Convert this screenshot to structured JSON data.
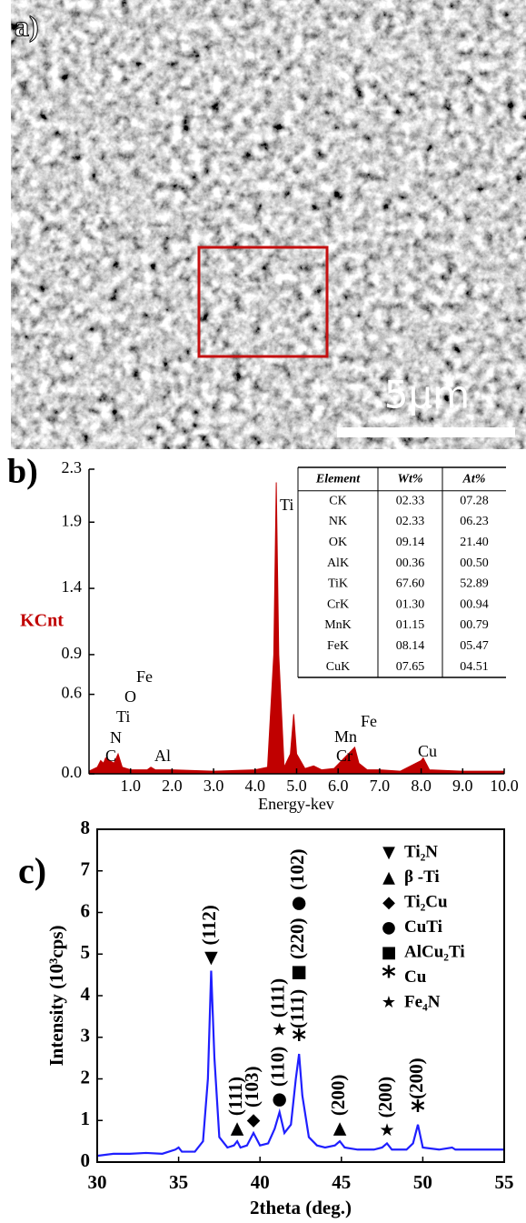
{
  "panel_a": {
    "label": "a)",
    "scale_bar": "5μm"
  },
  "chart_data": [
    {
      "type": "area",
      "panel_label": "b)",
      "color": "#c00000",
      "y_label": "KCnt",
      "x_label": "Energy-kev",
      "x": [
        0,
        0.2,
        0.28,
        0.35,
        0.4,
        0.5,
        0.6,
        0.7,
        0.8,
        1.0,
        1.4,
        1.49,
        1.6,
        2.0,
        3.0,
        4.0,
        4.3,
        4.45,
        4.51,
        4.57,
        4.7,
        4.85,
        4.93,
        5.0,
        5.2,
        5.41,
        5.6,
        5.9,
        6.4,
        6.5,
        6.7,
        7.0,
        7.5,
        8.0,
        8.05,
        8.2,
        9.0,
        10.0
      ],
      "values": [
        0.02,
        0.05,
        0.1,
        0.08,
        0.12,
        0.1,
        0.08,
        0.15,
        0.05,
        0.03,
        0.03,
        0.05,
        0.03,
        0.03,
        0.02,
        0.03,
        0.05,
        0.9,
        2.2,
        0.9,
        0.05,
        0.15,
        0.45,
        0.15,
        0.04,
        0.06,
        0.03,
        0.04,
        0.2,
        0.08,
        0.03,
        0.03,
        0.02,
        0.1,
        0.12,
        0.03,
        0.02,
        0.02
      ],
      "xlim": [
        0,
        10
      ],
      "xticks": [
        {
          "value": 1,
          "label": "1.0"
        },
        {
          "value": 2,
          "label": "2.0"
        },
        {
          "value": 3,
          "label": "3.0"
        },
        {
          "value": 4,
          "label": "4.0"
        },
        {
          "value": 5,
          "label": "5.0"
        },
        {
          "value": 6,
          "label": "6.0"
        },
        {
          "value": 7,
          "label": "7.0"
        },
        {
          "value": 8,
          "label": "8.0"
        },
        {
          "value": 9,
          "label": "9.0"
        },
        {
          "value": 10,
          "label": "10.0"
        }
      ],
      "ylim": [
        0,
        2.3
      ],
      "yticks": [
        {
          "value": 0,
          "label": "0.0"
        },
        0.6,
        0.9,
        1.4,
        1.9,
        2.3
      ],
      "annotations": [
        "Ti",
        "Fe",
        "O",
        "Ti",
        "N",
        "C",
        "Al",
        "Cr",
        "Mn",
        "Fe",
        "Cu"
      ],
      "table": {
        "columns": [
          "Element",
          "Wt%",
          "At%"
        ],
        "rows": [
          [
            "CK",
            "02.33",
            "07.28"
          ],
          [
            "NK",
            "02.33",
            "06.23"
          ],
          [
            "OK",
            "09.14",
            "21.40"
          ],
          [
            "AlK",
            "00.36",
            "00.50"
          ],
          [
            "TiK",
            "67.60",
            "52.89"
          ],
          [
            "CrK",
            "01.30",
            "00.94"
          ],
          [
            "MnK",
            "01.15",
            "00.79"
          ],
          [
            "FeK",
            "08.14",
            "05.47"
          ],
          [
            "CuK",
            "07.65",
            "04.51"
          ]
        ]
      }
    },
    {
      "type": "line",
      "panel_label": "c)",
      "color": "#1f1fff",
      "y_label": "Intensity (10³cps)",
      "x_label": "2theta (deg.)",
      "x": [
        30,
        31,
        32,
        33,
        34,
        34.8,
        35,
        35.2,
        36,
        36.5,
        36.8,
        37.0,
        37.2,
        37.5,
        38,
        38.4,
        38.6,
        38.8,
        39.2,
        39.6,
        40,
        40.5,
        40.9,
        41.2,
        41.5,
        41.9,
        42.2,
        42.4,
        42.6,
        43,
        43.5,
        44,
        44.6,
        44.9,
        45.2,
        46,
        47,
        47.5,
        47.8,
        48.1,
        49,
        49.4,
        49.7,
        50,
        51,
        51.8,
        52,
        53,
        54,
        55
      ],
      "values": [
        0.15,
        0.2,
        0.2,
        0.22,
        0.2,
        0.3,
        0.35,
        0.25,
        0.25,
        0.5,
        2.0,
        4.6,
        2.5,
        0.6,
        0.35,
        0.4,
        0.5,
        0.35,
        0.4,
        0.7,
        0.4,
        0.45,
        0.8,
        1.2,
        0.7,
        0.9,
        2.0,
        2.6,
        1.6,
        0.6,
        0.4,
        0.35,
        0.4,
        0.5,
        0.35,
        0.3,
        0.3,
        0.35,
        0.45,
        0.3,
        0.3,
        0.45,
        0.9,
        0.35,
        0.3,
        0.35,
        0.3,
        0.3,
        0.3,
        0.3
      ],
      "xlim": [
        30,
        55
      ],
      "xticks": [
        30,
        35,
        40,
        45,
        50,
        55
      ],
      "ylim": [
        0,
        8
      ],
      "yticks": [
        0,
        1,
        2,
        3,
        4,
        5,
        6,
        7,
        8
      ],
      "peaks": [
        {
          "x": 37.0,
          "labels": [
            {
              "symbol": "▼",
              "text": "(112)"
            }
          ]
        },
        {
          "x": 38.6,
          "labels": [
            {
              "symbol": "▲",
              "text": "(111)"
            }
          ]
        },
        {
          "x": 39.6,
          "labels": [
            {
              "symbol": "◆",
              "text": "(103)"
            }
          ]
        },
        {
          "x": 41.2,
          "labels": [
            {
              "symbol": "●",
              "text": "(110)"
            },
            {
              "symbol": "★",
              "text": "(111)"
            }
          ]
        },
        {
          "x": 42.4,
          "labels": [
            {
              "symbol": "*",
              "text": "(111)"
            },
            {
              "symbol": "■",
              "text": "(220)"
            },
            {
              "symbol": "●",
              "text": "(102)"
            }
          ]
        },
        {
          "x": 44.9,
          "labels": [
            {
              "symbol": "▲",
              "text": "(200)"
            }
          ]
        },
        {
          "x": 47.8,
          "labels": [
            {
              "symbol": "★",
              "text": "(200)"
            }
          ]
        },
        {
          "x": 49.7,
          "labels": [
            {
              "symbol": "*",
              "text": "(200)"
            }
          ]
        }
      ],
      "legend": [
        {
          "symbol": "▼",
          "label": "Ti₂N"
        },
        {
          "symbol": "▲",
          "label": "β -Ti"
        },
        {
          "symbol": "◆",
          "label": "Ti₂Cu"
        },
        {
          "symbol": "●",
          "label": "CuTi"
        },
        {
          "symbol": "■",
          "label": "AlCu₂Ti"
        },
        {
          "symbol": "*",
          "label": "Cu"
        },
        {
          "symbol": "★",
          "label": "Fe₄N"
        }
      ]
    }
  ]
}
